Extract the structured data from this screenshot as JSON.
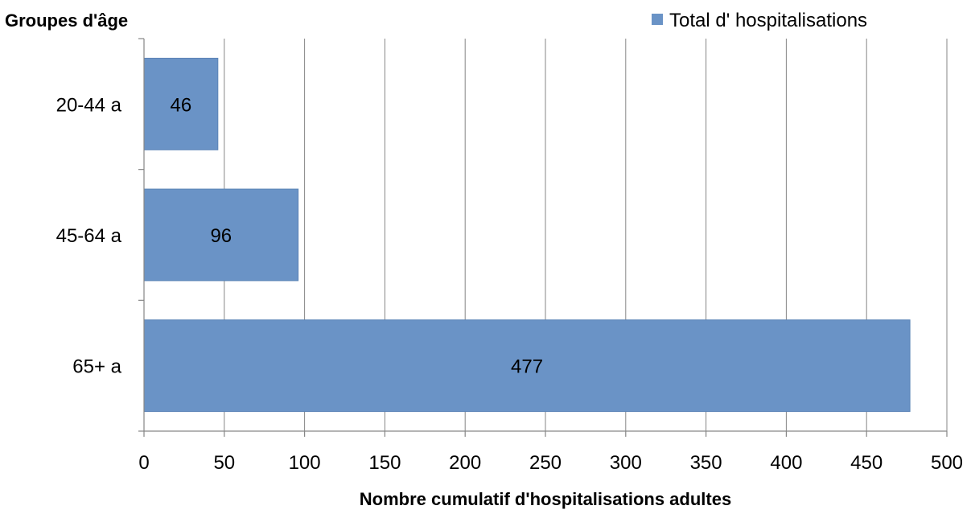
{
  "chart_data": {
    "type": "bar",
    "orientation": "horizontal",
    "y_title": "Groupes d'âge",
    "xlabel": "Nombre cumulatif d'hospitalisations  adultes",
    "categories": [
      "20-44 a",
      "45-64 a",
      "65+ a"
    ],
    "series": [
      {
        "name": "Total d' hospitalisations",
        "values": [
          46,
          96,
          477
        ],
        "color": "#6A93C6"
      }
    ],
    "xlim": [
      0,
      500
    ],
    "xticks": [
      "0",
      "50",
      "100",
      "150",
      "200",
      "250",
      "300",
      "350",
      "400",
      "450",
      "500"
    ],
    "grid": "vertical",
    "legend": "top-right",
    "data_labels": [
      "46",
      "96",
      "477"
    ]
  }
}
